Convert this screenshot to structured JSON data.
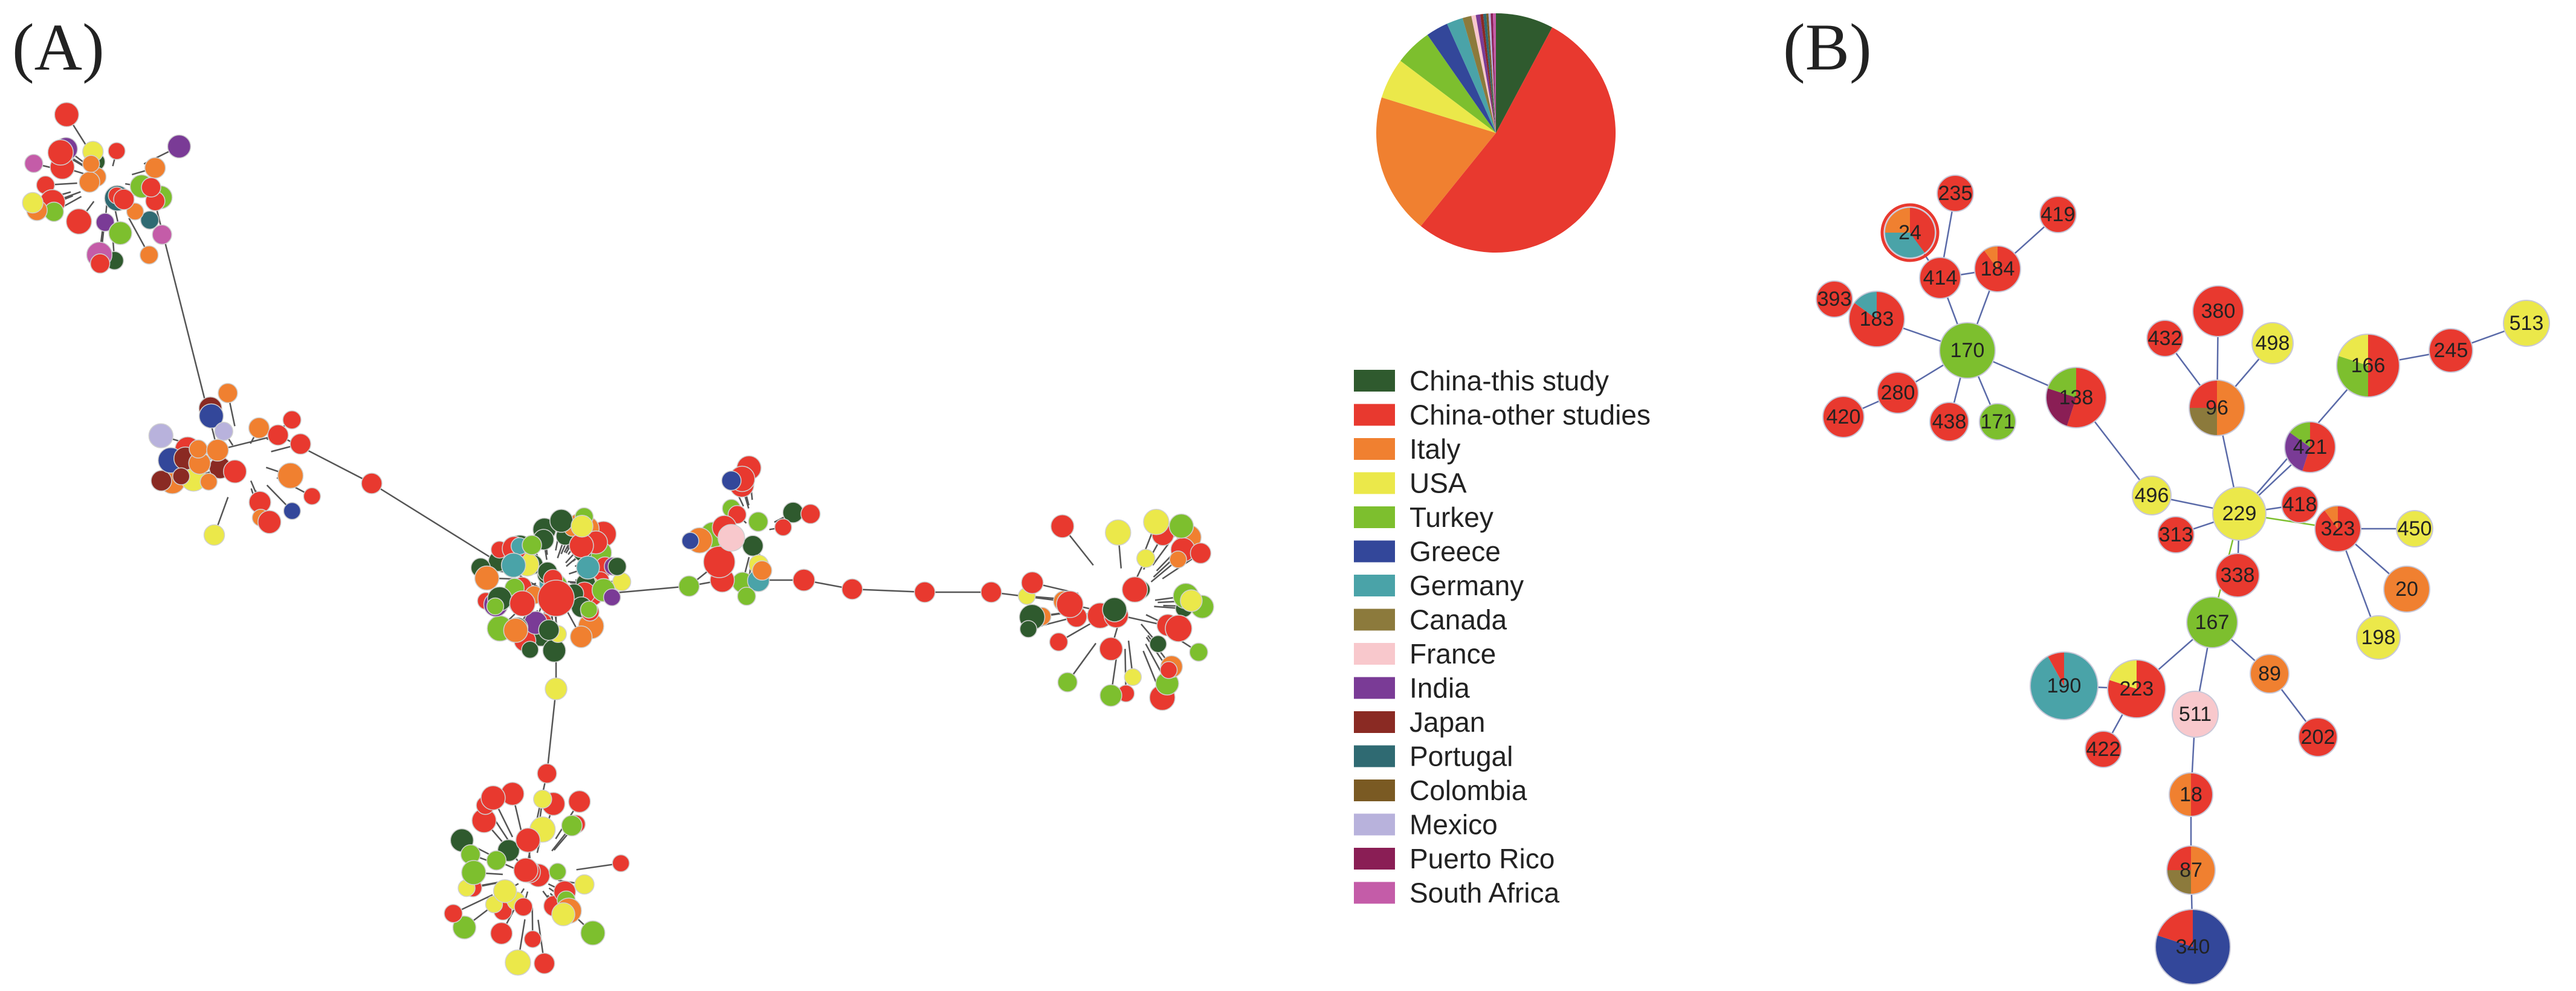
{
  "panels": {
    "a_label": "(A)",
    "b_label": "(B)"
  },
  "colors": {
    "China-this study": "#2f5a2e",
    "China-other studies": "#e8392f",
    "Italy": "#f08030",
    "USA": "#ebe84a",
    "Turkey": "#7dbf2e",
    "Greece": "#33479a",
    "Germany": "#4aa3a8",
    "Canada": "#8c7a3c",
    "France": "#f8c8cc",
    "India": "#7a3b96",
    "Japan": "#8a2a23",
    "Portugal": "#2f6a72",
    "Colombia": "#7a5a23",
    "Mexico": "#b8b2dc",
    "Puerto Rico": "#8a1e55",
    "South Africa": "#c45ca8"
  },
  "legend": [
    "China-this study",
    "China-other studies",
    "Italy",
    "USA",
    "Turkey",
    "Greece",
    "Germany",
    "Canada",
    "France",
    "India",
    "Japan",
    "Portugal",
    "Colombia",
    "Mexico",
    "Puerto Rico",
    "South Africa"
  ],
  "pie": [
    {
      "country": "China-this study",
      "share": 0.078
    },
    {
      "country": "China-other studies",
      "share": 0.53
    },
    {
      "country": "Italy",
      "share": 0.19
    },
    {
      "country": "USA",
      "share": 0.055
    },
    {
      "country": "Turkey",
      "share": 0.05
    },
    {
      "country": "Greece",
      "share": 0.03
    },
    {
      "country": "Germany",
      "share": 0.022
    },
    {
      "country": "Canada",
      "share": 0.012
    },
    {
      "country": "France",
      "share": 0.006
    },
    {
      "country": "India",
      "share": 0.006
    },
    {
      "country": "Japan",
      "share": 0.004
    },
    {
      "country": "Portugal",
      "share": 0.004
    },
    {
      "country": "Colombia",
      "share": 0.003
    },
    {
      "country": "Mexico",
      "share": 0.003
    },
    {
      "country": "Puerto Rico",
      "share": 0.003
    },
    {
      "country": "South Africa",
      "share": 0.004
    }
  ],
  "network_b": {
    "nodes": [
      {
        "id": "24",
        "parts": [
          [
            "China-other studies",
            0.4
          ],
          [
            "Germany",
            0.35
          ],
          [
            "Italy",
            0.25
          ]
        ]
      },
      {
        "id": "235",
        "parts": [
          [
            "China-other studies",
            1
          ]
        ]
      },
      {
        "id": "419",
        "parts": [
          [
            "China-other studies",
            1
          ]
        ]
      },
      {
        "id": "414",
        "parts": [
          [
            "China-other studies",
            1
          ]
        ]
      },
      {
        "id": "184",
        "parts": [
          [
            "China-other studies",
            0.9
          ],
          [
            "Italy",
            0.1
          ]
        ]
      },
      {
        "id": "393",
        "parts": [
          [
            "China-other studies",
            1
          ]
        ]
      },
      {
        "id": "183",
        "parts": [
          [
            "China-other studies",
            0.85
          ],
          [
            "Germany",
            0.15
          ]
        ]
      },
      {
        "id": "170",
        "parts": [
          [
            "Turkey",
            1
          ]
        ]
      },
      {
        "id": "420",
        "parts": [
          [
            "China-other studies",
            1
          ]
        ]
      },
      {
        "id": "280",
        "parts": [
          [
            "China-other studies",
            1
          ]
        ]
      },
      {
        "id": "438",
        "parts": [
          [
            "China-other studies",
            1
          ]
        ]
      },
      {
        "id": "171",
        "parts": [
          [
            "Turkey",
            1
          ]
        ]
      },
      {
        "id": "138",
        "parts": [
          [
            "China-other studies",
            0.55
          ],
          [
            "Puerto Rico",
            0.25
          ],
          [
            "Turkey",
            0.2
          ]
        ]
      },
      {
        "id": "496",
        "parts": [
          [
            "USA",
            1
          ]
        ]
      },
      {
        "id": "432",
        "parts": [
          [
            "China-other studies",
            1
          ]
        ]
      },
      {
        "id": "380",
        "parts": [
          [
            "China-other studies",
            1
          ]
        ]
      },
      {
        "id": "498",
        "parts": [
          [
            "USA",
            1
          ]
        ]
      },
      {
        "id": "96",
        "parts": [
          [
            "Italy",
            0.5
          ],
          [
            "Canada",
            0.25
          ],
          [
            "China-other studies",
            0.25
          ]
        ]
      },
      {
        "id": "166",
        "parts": [
          [
            "China-other studies",
            0.5
          ],
          [
            "Turkey",
            0.3
          ],
          [
            "USA",
            0.2
          ]
        ]
      },
      {
        "id": "245",
        "parts": [
          [
            "China-other studies",
            1
          ]
        ]
      },
      {
        "id": "513",
        "parts": [
          [
            "USA",
            1
          ]
        ]
      },
      {
        "id": "421",
        "parts": [
          [
            "China-other studies",
            0.55
          ],
          [
            "India",
            0.3
          ],
          [
            "Turkey",
            0.15
          ]
        ]
      },
      {
        "id": "229",
        "parts": [
          [
            "USA",
            1
          ]
        ]
      },
      {
        "id": "418",
        "parts": [
          [
            "China-other studies",
            1
          ]
        ]
      },
      {
        "id": "313",
        "parts": [
          [
            "China-other studies",
            1
          ]
        ]
      },
      {
        "id": "338",
        "parts": [
          [
            "China-other studies",
            1
          ]
        ]
      },
      {
        "id": "323",
        "parts": [
          [
            "China-other studies",
            0.9
          ],
          [
            "Italy",
            0.1
          ]
        ]
      },
      {
        "id": "450",
        "parts": [
          [
            "USA",
            1
          ]
        ]
      },
      {
        "id": "20",
        "parts": [
          [
            "Italy",
            1
          ]
        ]
      },
      {
        "id": "198",
        "parts": [
          [
            "USA",
            1
          ]
        ]
      },
      {
        "id": "167",
        "parts": [
          [
            "Turkey",
            1
          ]
        ]
      },
      {
        "id": "190",
        "parts": [
          [
            "Germany",
            0.92
          ],
          [
            "China-other studies",
            0.08
          ]
        ]
      },
      {
        "id": "223",
        "parts": [
          [
            "China-other studies",
            0.8
          ],
          [
            "USA",
            0.2
          ]
        ]
      },
      {
        "id": "422",
        "parts": [
          [
            "China-other studies",
            1
          ]
        ]
      },
      {
        "id": "511",
        "parts": [
          [
            "France",
            1
          ]
        ]
      },
      {
        "id": "89",
        "parts": [
          [
            "Italy",
            1
          ]
        ]
      },
      {
        "id": "202",
        "parts": [
          [
            "China-other studies",
            1
          ]
        ]
      },
      {
        "id": "18",
        "parts": [
          [
            "China-other studies",
            0.5
          ],
          [
            "Italy",
            0.5
          ]
        ]
      },
      {
        "id": "87",
        "parts": [
          [
            "Italy",
            0.5
          ],
          [
            "Canada",
            0.25
          ],
          [
            "China-other studies",
            0.25
          ]
        ]
      },
      {
        "id": "340",
        "parts": [
          [
            "Greece",
            0.8
          ],
          [
            "China-other studies",
            0.2
          ]
        ]
      }
    ]
  }
}
